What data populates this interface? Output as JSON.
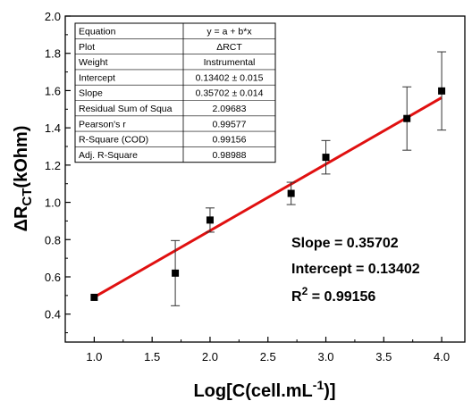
{
  "chart_data": {
    "type": "scatter",
    "xlabel": {
      "main": "Log[C(cell.mL",
      "sup": "-1",
      "end": ")]"
    },
    "ylabel": {
      "main": "ΔR",
      "sub": "CT",
      "end": "(kOhm)"
    },
    "xlim": [
      0.75,
      4.2
    ],
    "ylim": [
      0.25,
      2.0
    ],
    "x_ticks": [
      "1.0",
      "1.5",
      "2.0",
      "2.5",
      "3.0",
      "3.5",
      "4.0"
    ],
    "y_ticks": [
      "0.4",
      "0.6",
      "0.8",
      "1.0",
      "1.2",
      "1.4",
      "1.6",
      "1.8",
      "2.0"
    ],
    "series": [
      {
        "points": [
          {
            "x": 1.0,
            "y": 0.49,
            "err": 0.0
          },
          {
            "x": 1.7,
            "y": 0.62,
            "err": 0.175
          },
          {
            "x": 2.0,
            "y": 0.905,
            "err": 0.065
          },
          {
            "x": 2.7,
            "y": 1.048,
            "err": 0.06
          },
          {
            "x": 3.0,
            "y": 1.242,
            "err": 0.09
          },
          {
            "x": 3.7,
            "y": 1.45,
            "err": 0.17
          },
          {
            "x": 4.0,
            "y": 1.598,
            "err": 0.21
          }
        ],
        "color": "#000000"
      }
    ],
    "fit": {
      "intercept": 0.13402,
      "slope": 0.35702,
      "x_range": [
        1.0,
        4.0
      ],
      "color": "#e01010"
    },
    "annotations": [
      {
        "text": "Slope = 0.35702"
      },
      {
        "text": "Intercept = 0.13402"
      },
      {
        "text": "R",
        "sup": "2",
        "end": " = 0.99156"
      }
    ],
    "fit_table": [
      [
        "Equation",
        "y = a + b*x"
      ],
      [
        "Plot",
        "ΔRCT"
      ],
      [
        "Weight",
        "Instrumental"
      ],
      [
        "Intercept",
        "0.13402 ± 0.015"
      ],
      [
        "Slope",
        "0.35702 ± 0.014"
      ],
      [
        "Residual Sum of Squa",
        "2.09683"
      ],
      [
        "Pearson's r",
        "0.99577"
      ],
      [
        "R-Square (COD)",
        "0.99156"
      ],
      [
        "Adj. R-Square",
        "0.98988"
      ]
    ]
  }
}
